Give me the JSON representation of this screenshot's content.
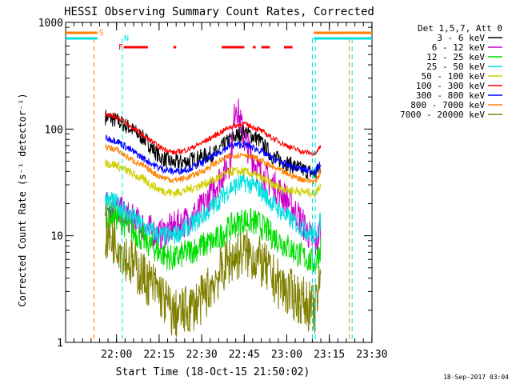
{
  "chart_data": {
    "type": "line",
    "title": "HESSI Observing Summary Count Rates, Corrected",
    "xlabel": "Start Time (18-Oct-15 21:50:02)",
    "ylabel": "Corrected Count Rate (s⁻¹ detector⁻¹)",
    "y_scale": "log",
    "ylim": [
      1,
      1000
    ],
    "y_ticks": [
      {
        "value": 1,
        "label": "1"
      },
      {
        "value": 10,
        "label": "10"
      },
      {
        "value": 100,
        "label": "100"
      },
      {
        "value": 1000,
        "label": "1000"
      }
    ],
    "x_ticks": [
      "22:00",
      "22:15",
      "22:30",
      "22:45",
      "23:00",
      "23:15",
      "23:30"
    ],
    "legend_title": "Det 1,5,7, Att 0",
    "legend_position": "right",
    "grid": false,
    "x_unit": "minutes after 21:50:02",
    "series": [
      {
        "name": "3 - 6 keV",
        "color": "#000000",
        "x": [
          6,
          10,
          14,
          20,
          25,
          30,
          35,
          40,
          45,
          50,
          55,
          60,
          65,
          70,
          75,
          80,
          82
        ],
        "values": [
          130,
          120,
          105,
          80,
          55,
          48,
          50,
          55,
          60,
          80,
          95,
          80,
          55,
          48,
          42,
          38,
          45
        ]
      },
      {
        "name": "6 - 12 keV",
        "color": "#cc00cc",
        "x": [
          6,
          10,
          14,
          20,
          25,
          30,
          35,
          40,
          45,
          50,
          52,
          55,
          60,
          65,
          70,
          75,
          80,
          82
        ],
        "values": [
          20,
          18,
          15,
          12,
          10,
          12,
          14,
          18,
          30,
          50,
          180,
          80,
          40,
          30,
          22,
          14,
          8,
          12
        ]
      },
      {
        "name": "12 - 25 keV",
        "color": "#00dd00",
        "x": [
          6,
          10,
          14,
          20,
          25,
          30,
          35,
          40,
          45,
          50,
          55,
          60,
          65,
          70,
          75,
          80,
          82
        ],
        "values": [
          16,
          15,
          12,
          9,
          7,
          6,
          7,
          8,
          9,
          12,
          14,
          13,
          10,
          8,
          6.5,
          5.5,
          8
        ]
      },
      {
        "name": "25 - 50 keV",
        "color": "#00e0e0",
        "x": [
          6,
          10,
          14,
          20,
          25,
          30,
          35,
          40,
          45,
          50,
          55,
          60,
          65,
          70,
          75,
          80,
          82
        ],
        "values": [
          22,
          20,
          16,
          12,
          10,
          10,
          12,
          15,
          20,
          28,
          32,
          28,
          20,
          15,
          12,
          10,
          14
        ]
      },
      {
        "name": "50 - 100 keV",
        "color": "#d0d000",
        "x": [
          6,
          10,
          14,
          20,
          25,
          30,
          35,
          40,
          45,
          50,
          55,
          60,
          65,
          70,
          75,
          80,
          82
        ],
        "values": [
          48,
          46,
          40,
          33,
          27,
          25,
          27,
          30,
          34,
          40,
          40,
          36,
          30,
          27,
          26,
          25,
          30
        ]
      },
      {
        "name": "100 - 300 keV",
        "color": "#ff0000",
        "x": [
          6,
          10,
          14,
          20,
          25,
          30,
          35,
          40,
          45,
          50,
          55,
          60,
          65,
          70,
          75,
          80,
          82
        ],
        "values": [
          140,
          130,
          110,
          85,
          68,
          60,
          64,
          74,
          88,
          105,
          112,
          100,
          82,
          70,
          62,
          58,
          70
        ]
      },
      {
        "name": "300 - 800 keV",
        "color": "#0000ff",
        "x": [
          6,
          10,
          14,
          20,
          25,
          30,
          35,
          40,
          45,
          50,
          55,
          60,
          65,
          70,
          75,
          80,
          82
        ],
        "values": [
          82,
          78,
          66,
          52,
          43,
          40,
          42,
          48,
          58,
          70,
          72,
          64,
          53,
          46,
          42,
          40,
          48
        ]
      },
      {
        "name": "800 - 7000 keV",
        "color": "#ff8000",
        "x": [
          6,
          10,
          14,
          20,
          25,
          30,
          35,
          40,
          45,
          50,
          55,
          60,
          65,
          70,
          75,
          80,
          82
        ],
        "values": [
          68,
          64,
          54,
          44,
          36,
          33,
          35,
          40,
          48,
          56,
          58,
          52,
          44,
          38,
          34,
          32,
          40
        ]
      },
      {
        "name": "7000 - 20000 keV",
        "color": "#808000",
        "x": [
          6,
          10,
          14,
          20,
          25,
          30,
          35,
          40,
          45,
          50,
          55,
          60,
          65,
          70,
          75,
          80,
          82
        ],
        "values": [
          10,
          9,
          6,
          4,
          3,
          1.8,
          2,
          2.5,
          4,
          6,
          7,
          6,
          4,
          3,
          2.5,
          2,
          4
        ]
      }
    ],
    "annotations": [
      {
        "label": "S",
        "color": "#ff8000",
        "x_range": [
          0,
          5
        ]
      },
      {
        "label": "N",
        "color": "#00e0e0",
        "x_range": [
          0,
          5
        ]
      },
      {
        "label": "F",
        "color": "#ff0000",
        "x_range": [
          7,
          84
        ]
      }
    ],
    "vertical_markers": [
      {
        "x": 2,
        "color": "#ff8000"
      },
      {
        "x": 12,
        "color": "#00e0e0"
      },
      {
        "x": 79,
        "color": "#00e0e0"
      },
      {
        "x": 80,
        "color": "#00e0e0"
      },
      {
        "x": 92,
        "color": "#ff8000"
      },
      {
        "x": 93,
        "color": "#00e0e0"
      }
    ],
    "timestamp": "18-Sep-2017 03:04"
  }
}
